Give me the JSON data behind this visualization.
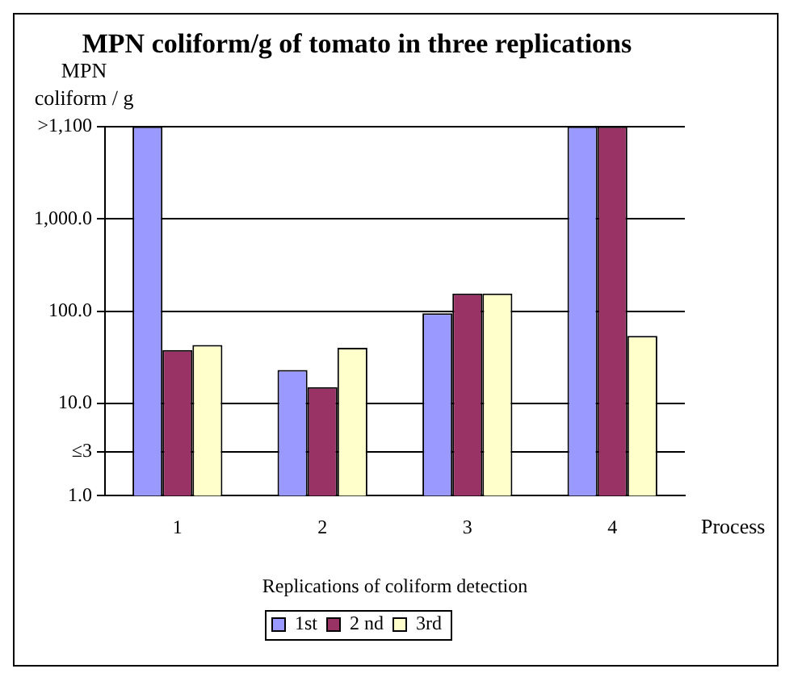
{
  "chart_data": {
    "type": "bar",
    "title": "MPN coliform/g of tomato in three replications",
    "ylabel": "MPN coliform / g",
    "xlabel": "Replications of coliform detection",
    "annotations": [
      "Process"
    ],
    "categories": [
      "1",
      "2",
      "3",
      "4"
    ],
    "series": [
      {
        "name": "1st",
        "color": "#9999ff",
        "values": [
          10000,
          23,
          95,
          10000
        ]
      },
      {
        "name": "2 nd",
        "color": "#993366",
        "values": [
          38,
          15,
          155,
          10000
        ]
      },
      {
        "name": "3rd",
        "color": "#ffffcc",
        "values": [
          43,
          40,
          155,
          54
        ]
      }
    ],
    "log": "y",
    "ylim": [
      1,
      10000
    ],
    "yticks": [
      {
        "value": 1,
        "label": "1.0"
      },
      {
        "value": 3,
        "label": "≤3"
      },
      {
        "value": 10,
        "label": "10.0"
      },
      {
        "value": 100,
        "label": "100.0"
      },
      {
        "value": 1000,
        "label": "1,000.0"
      },
      {
        "value": 10000,
        "label": ">1,100"
      }
    ],
    "grid": "y",
    "legend": "bottom"
  }
}
